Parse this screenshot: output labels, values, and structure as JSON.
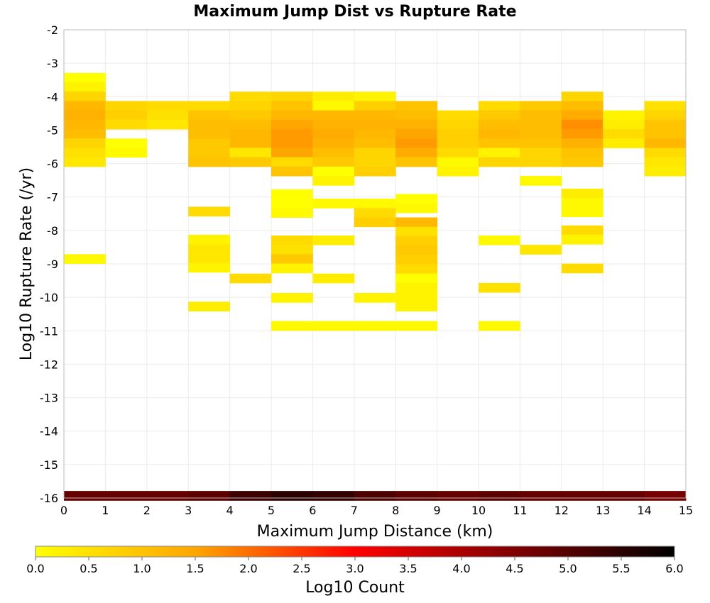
{
  "chart_data": {
    "type": "heatmap",
    "title": "Maximum Jump Dist vs Rupture Rate",
    "xlabel": "Maximum Jump Distance (km)",
    "ylabel": "Log10 Rupture Rate (/yr)",
    "xlim": [
      0,
      15
    ],
    "ylim": [
      -16,
      -2
    ],
    "xticks": [
      "0",
      "1",
      "2",
      "3",
      "4",
      "5",
      "6",
      "7",
      "8",
      "9",
      "10",
      "11",
      "12",
      "13",
      "14",
      "15"
    ],
    "yticks": [
      "-2",
      "-3",
      "-4",
      "-5",
      "-6",
      "-7",
      "-8",
      "-9",
      "-10",
      "-11",
      "-12",
      "-13",
      "-14",
      "-15",
      "-16"
    ],
    "bin_width_x": 1,
    "bin_height_y": 0.28,
    "grid": true,
    "colorbar": {
      "label": "Log10 Count",
      "range": [
        0,
        6
      ],
      "ticks": [
        "0.0",
        "0.5",
        "1.0",
        "1.5",
        "2.0",
        "2.5",
        "3.0",
        "3.5",
        "4.0",
        "4.5",
        "5.0",
        "5.5",
        "6.0"
      ],
      "colors": [
        "#ffff00",
        "#ffa500",
        "#ff0000",
        "#000000"
      ]
    },
    "cells": [
      {
        "x": 0,
        "y": -3.43,
        "v": 0.0
      },
      {
        "x": 0,
        "y": -3.71,
        "v": 0.2
      },
      {
        "x": 0,
        "y": -3.99,
        "v": 0.7
      },
      {
        "x": 0,
        "y": -4.27,
        "v": 1.2
      },
      {
        "x": 0,
        "y": -4.55,
        "v": 1.3
      },
      {
        "x": 0,
        "y": -4.83,
        "v": 1.2
      },
      {
        "x": 0,
        "y": -5.11,
        "v": 1.1
      },
      {
        "x": 0,
        "y": -5.39,
        "v": 0.7
      },
      {
        "x": 0,
        "y": -5.67,
        "v": 0.5
      },
      {
        "x": 0,
        "y": -5.95,
        "v": 0.4
      },
      {
        "x": 0,
        "y": -8.85,
        "v": 0.1
      },
      {
        "x": 1,
        "y": -4.27,
        "v": 0.7
      },
      {
        "x": 1,
        "y": -4.55,
        "v": 0.8
      },
      {
        "x": 1,
        "y": -4.83,
        "v": 0.6
      },
      {
        "x": 1,
        "y": -5.39,
        "v": 0.0
      },
      {
        "x": 1,
        "y": -5.67,
        "v": 0.1
      },
      {
        "x": 2,
        "y": -4.27,
        "v": 0.6
      },
      {
        "x": 2,
        "y": -4.55,
        "v": 0.5
      },
      {
        "x": 2,
        "y": -4.83,
        "v": 0.4
      },
      {
        "x": 3,
        "y": -4.27,
        "v": 0.6
      },
      {
        "x": 3,
        "y": -4.55,
        "v": 1.0
      },
      {
        "x": 3,
        "y": -4.83,
        "v": 1.1
      },
      {
        "x": 3,
        "y": -5.11,
        "v": 1.1
      },
      {
        "x": 3,
        "y": -5.39,
        "v": 0.9
      },
      {
        "x": 3,
        "y": -5.67,
        "v": 0.9
      },
      {
        "x": 3,
        "y": -5.95,
        "v": 1.0
      },
      {
        "x": 3,
        "y": -7.43,
        "v": 0.6
      },
      {
        "x": 3,
        "y": -8.27,
        "v": 0.2
      },
      {
        "x": 3,
        "y": -8.55,
        "v": 0.4
      },
      {
        "x": 3,
        "y": -8.83,
        "v": 0.4
      },
      {
        "x": 3,
        "y": -9.11,
        "v": 0.2
      },
      {
        "x": 3,
        "y": -10.27,
        "v": 0.3
      },
      {
        "x": 4,
        "y": -3.99,
        "v": 0.6
      },
      {
        "x": 4,
        "y": -4.27,
        "v": 0.7
      },
      {
        "x": 4,
        "y": -4.55,
        "v": 0.9
      },
      {
        "x": 4,
        "y": -4.83,
        "v": 1.1
      },
      {
        "x": 4,
        "y": -5.11,
        "v": 1.2
      },
      {
        "x": 4,
        "y": -5.39,
        "v": 1.2
      },
      {
        "x": 4,
        "y": -5.67,
        "v": 0.4
      },
      {
        "x": 4,
        "y": -5.95,
        "v": 0.9
      },
      {
        "x": 4,
        "y": -9.43,
        "v": 0.6
      },
      {
        "x": 5,
        "y": -3.99,
        "v": 0.7
      },
      {
        "x": 5,
        "y": -4.27,
        "v": 1.0
      },
      {
        "x": 5,
        "y": -4.55,
        "v": 1.2
      },
      {
        "x": 5,
        "y": -4.83,
        "v": 1.5
      },
      {
        "x": 5,
        "y": -5.11,
        "v": 1.6
      },
      {
        "x": 5,
        "y": -5.39,
        "v": 1.6
      },
      {
        "x": 5,
        "y": -5.67,
        "v": 1.5
      },
      {
        "x": 5,
        "y": -5.95,
        "v": 0.6
      },
      {
        "x": 5,
        "y": -6.23,
        "v": 1.0
      },
      {
        "x": 5,
        "y": -6.91,
        "v": 0.0
      },
      {
        "x": 5,
        "y": -7.19,
        "v": 0.0
      },
      {
        "x": 5,
        "y": -7.47,
        "v": 0.1
      },
      {
        "x": 5,
        "y": -8.29,
        "v": 0.6
      },
      {
        "x": 5,
        "y": -8.57,
        "v": 0.5
      },
      {
        "x": 5,
        "y": -8.85,
        "v": 0.9
      },
      {
        "x": 5,
        "y": -9.13,
        "v": 0.2
      },
      {
        "x": 5,
        "y": -10.01,
        "v": 0.2
      },
      {
        "x": 5,
        "y": -10.85,
        "v": 0.1
      },
      {
        "x": 6,
        "y": -3.99,
        "v": 0.3
      },
      {
        "x": 6,
        "y": -4.27,
        "v": 0.1
      },
      {
        "x": 6,
        "y": -4.55,
        "v": 1.2
      },
      {
        "x": 6,
        "y": -4.83,
        "v": 1.3
      },
      {
        "x": 6,
        "y": -5.11,
        "v": 1.4
      },
      {
        "x": 6,
        "y": -5.39,
        "v": 1.3
      },
      {
        "x": 6,
        "y": -5.67,
        "v": 1.1
      },
      {
        "x": 6,
        "y": -5.95,
        "v": 0.9
      },
      {
        "x": 6,
        "y": -6.23,
        "v": 0.0
      },
      {
        "x": 6,
        "y": -6.51,
        "v": 0.2
      },
      {
        "x": 6,
        "y": -7.19,
        "v": 0.1
      },
      {
        "x": 6,
        "y": -8.29,
        "v": 0.3
      },
      {
        "x": 6,
        "y": -9.43,
        "v": 0.3
      },
      {
        "x": 6,
        "y": -10.85,
        "v": 0.1
      },
      {
        "x": 7,
        "y": -3.99,
        "v": 0.2
      },
      {
        "x": 7,
        "y": -4.27,
        "v": 0.8
      },
      {
        "x": 7,
        "y": -4.55,
        "v": 1.2
      },
      {
        "x": 7,
        "y": -4.83,
        "v": 1.3
      },
      {
        "x": 7,
        "y": -5.11,
        "v": 1.2
      },
      {
        "x": 7,
        "y": -5.39,
        "v": 1.1
      },
      {
        "x": 7,
        "y": -5.67,
        "v": 0.7
      },
      {
        "x": 7,
        "y": -5.95,
        "v": 0.7
      },
      {
        "x": 7,
        "y": -6.23,
        "v": 0.8
      },
      {
        "x": 7,
        "y": -7.19,
        "v": 0.1
      },
      {
        "x": 7,
        "y": -7.47,
        "v": 0.6
      },
      {
        "x": 7,
        "y": -7.75,
        "v": 0.8
      },
      {
        "x": 7,
        "y": -10.01,
        "v": 0.2
      },
      {
        "x": 7,
        "y": -10.85,
        "v": 0.1
      },
      {
        "x": 8,
        "y": -4.27,
        "v": 1.0
      },
      {
        "x": 8,
        "y": -4.55,
        "v": 1.1
      },
      {
        "x": 8,
        "y": -4.83,
        "v": 1.3
      },
      {
        "x": 8,
        "y": -5.11,
        "v": 1.5
      },
      {
        "x": 8,
        "y": -5.39,
        "v": 1.6
      },
      {
        "x": 8,
        "y": -5.67,
        "v": 1.4
      },
      {
        "x": 8,
        "y": -5.95,
        "v": 1.0
      },
      {
        "x": 8,
        "y": -7.05,
        "v": 0.0
      },
      {
        "x": 8,
        "y": -7.33,
        "v": 0.1
      },
      {
        "x": 8,
        "y": -7.75,
        "v": 1.2
      },
      {
        "x": 8,
        "y": -8.03,
        "v": 0.5
      },
      {
        "x": 8,
        "y": -8.31,
        "v": 0.8
      },
      {
        "x": 8,
        "y": -8.59,
        "v": 0.9
      },
      {
        "x": 8,
        "y": -8.87,
        "v": 0.8
      },
      {
        "x": 8,
        "y": -9.15,
        "v": 0.6
      },
      {
        "x": 8,
        "y": -9.43,
        "v": 0.0
      },
      {
        "x": 8,
        "y": -9.71,
        "v": 0.2
      },
      {
        "x": 8,
        "y": -9.99,
        "v": 0.2
      },
      {
        "x": 8,
        "y": -10.27,
        "v": 0.2
      },
      {
        "x": 8,
        "y": -10.85,
        "v": 0.1
      },
      {
        "x": 9,
        "y": -4.55,
        "v": 0.6
      },
      {
        "x": 9,
        "y": -4.83,
        "v": 0.7
      },
      {
        "x": 9,
        "y": -5.11,
        "v": 0.8
      },
      {
        "x": 9,
        "y": -5.39,
        "v": 0.8
      },
      {
        "x": 9,
        "y": -5.67,
        "v": 0.6
      },
      {
        "x": 9,
        "y": -5.95,
        "v": 0.1
      },
      {
        "x": 9,
        "y": -6.23,
        "v": 0.2
      },
      {
        "x": 10,
        "y": -4.27,
        "v": 0.6
      },
      {
        "x": 10,
        "y": -4.55,
        "v": 0.9
      },
      {
        "x": 10,
        "y": -4.83,
        "v": 1.1
      },
      {
        "x": 10,
        "y": -5.11,
        "v": 1.2
      },
      {
        "x": 10,
        "y": -5.39,
        "v": 1.0
      },
      {
        "x": 10,
        "y": -5.67,
        "v": 0.2
      },
      {
        "x": 10,
        "y": -5.95,
        "v": 0.7
      },
      {
        "x": 10,
        "y": -8.29,
        "v": 0.1
      },
      {
        "x": 10,
        "y": -9.71,
        "v": 0.5
      },
      {
        "x": 10,
        "y": -10.85,
        "v": 0.1
      },
      {
        "x": 11,
        "y": -4.27,
        "v": 0.9
      },
      {
        "x": 11,
        "y": -4.55,
        "v": 1.1
      },
      {
        "x": 11,
        "y": -4.83,
        "v": 1.1
      },
      {
        "x": 11,
        "y": -5.11,
        "v": 1.1
      },
      {
        "x": 11,
        "y": -5.39,
        "v": 1.0
      },
      {
        "x": 11,
        "y": -5.67,
        "v": 0.7
      },
      {
        "x": 11,
        "y": -5.95,
        "v": 0.7
      },
      {
        "x": 11,
        "y": -6.51,
        "v": 0.1
      },
      {
        "x": 11,
        "y": -8.57,
        "v": 0.4
      },
      {
        "x": 12,
        "y": -3.99,
        "v": 0.7
      },
      {
        "x": 12,
        "y": -4.27,
        "v": 1.1
      },
      {
        "x": 12,
        "y": -4.55,
        "v": 1.4
      },
      {
        "x": 12,
        "y": -4.83,
        "v": 1.7
      },
      {
        "x": 12,
        "y": -5.11,
        "v": 1.6
      },
      {
        "x": 12,
        "y": -5.39,
        "v": 1.3
      },
      {
        "x": 12,
        "y": -5.67,
        "v": 1.0
      },
      {
        "x": 12,
        "y": -5.95,
        "v": 0.9
      },
      {
        "x": 12,
        "y": -6.89,
        "v": 0.3
      },
      {
        "x": 12,
        "y": -7.17,
        "v": 0.1
      },
      {
        "x": 12,
        "y": -7.45,
        "v": 0.1
      },
      {
        "x": 12,
        "y": -7.99,
        "v": 0.6
      },
      {
        "x": 12,
        "y": -8.27,
        "v": 0.2
      },
      {
        "x": 12,
        "y": -9.13,
        "v": 0.6
      },
      {
        "x": 13,
        "y": -4.55,
        "v": 0.2
      },
      {
        "x": 13,
        "y": -4.83,
        "v": 0.3
      },
      {
        "x": 13,
        "y": -5.11,
        "v": 0.6
      },
      {
        "x": 13,
        "y": -5.39,
        "v": 0.3
      },
      {
        "x": 14,
        "y": -4.27,
        "v": 0.5
      },
      {
        "x": 14,
        "y": -4.55,
        "v": 0.7
      },
      {
        "x": 14,
        "y": -4.83,
        "v": 1.0
      },
      {
        "x": 14,
        "y": -5.11,
        "v": 1.0
      },
      {
        "x": 14,
        "y": -5.39,
        "v": 1.2
      },
      {
        "x": 14,
        "y": -5.67,
        "v": 0.6
      },
      {
        "x": 14,
        "y": -5.95,
        "v": 0.4
      },
      {
        "x": 14,
        "y": -6.23,
        "v": 0.3
      },
      {
        "x": 0,
        "y": -15.93,
        "v": 4.8
      },
      {
        "x": 1,
        "y": -15.93,
        "v": 4.8
      },
      {
        "x": 2,
        "y": -15.93,
        "v": 4.8
      },
      {
        "x": 3,
        "y": -15.93,
        "v": 4.9
      },
      {
        "x": 4,
        "y": -15.93,
        "v": 5.3
      },
      {
        "x": 5,
        "y": -15.93,
        "v": 5.5
      },
      {
        "x": 6,
        "y": -15.93,
        "v": 5.4
      },
      {
        "x": 7,
        "y": -15.93,
        "v": 5.1
      },
      {
        "x": 8,
        "y": -15.93,
        "v": 4.9
      },
      {
        "x": 9,
        "y": -15.93,
        "v": 4.8
      },
      {
        "x": 10,
        "y": -15.93,
        "v": 4.9
      },
      {
        "x": 11,
        "y": -15.93,
        "v": 4.8
      },
      {
        "x": 12,
        "y": -15.93,
        "v": 4.8
      },
      {
        "x": 13,
        "y": -15.93,
        "v": 4.8
      },
      {
        "x": 14,
        "y": -15.93,
        "v": 4.6
      }
    ]
  }
}
